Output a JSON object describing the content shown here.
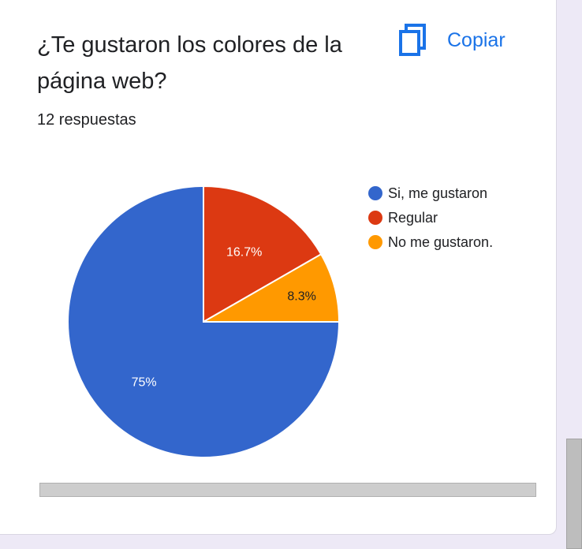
{
  "question": {
    "title": "¿Te gustaron los colores de la página web?",
    "response_count": "12 respuestas"
  },
  "actions": {
    "copy_label": "Copiar",
    "copy_icon": "copy-icon"
  },
  "chart_data": {
    "type": "pie",
    "title": "",
    "legend_position": "right",
    "slices": [
      {
        "label": "Si, me gustaron",
        "value": 75,
        "display": "75%",
        "color": "#3366cc"
      },
      {
        "label": "Regular",
        "value": 16.7,
        "display": "16.7%",
        "color": "#dc3912"
      },
      {
        "label": "No me gustaron.",
        "value": 8.3,
        "display": "8.3%",
        "color": "#ff9900"
      }
    ]
  }
}
